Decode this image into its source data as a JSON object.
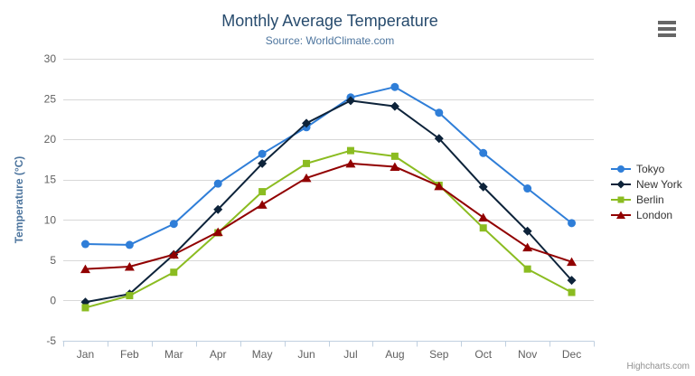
{
  "header": {
    "title": "Monthly Average Temperature",
    "subtitle": "Source: WorldClimate.com"
  },
  "credits": {
    "text": "Highcharts.com"
  },
  "menu": {
    "icon": "hamburger-menu-icon"
  },
  "chart_data": {
    "type": "line",
    "title": "Monthly Average Temperature",
    "subtitle": "Source: WorldClimate.com",
    "xlabel": "",
    "ylabel": "Temperature (°C)",
    "ylim": [
      -5,
      30
    ],
    "ytick_step": 5,
    "grid": true,
    "legend_position": "right",
    "categories": [
      "Jan",
      "Feb",
      "Mar",
      "Apr",
      "May",
      "Jun",
      "Jul",
      "Aug",
      "Sep",
      "Oct",
      "Nov",
      "Dec"
    ],
    "series": [
      {
        "name": "Tokyo",
        "marker": "circle",
        "color": "#2f7ed8",
        "values": [
          7.0,
          6.9,
          9.5,
          14.5,
          18.2,
          21.5,
          25.2,
          26.5,
          23.3,
          18.3,
          13.9,
          9.6
        ]
      },
      {
        "name": "New York",
        "marker": "diamond",
        "color": "#0d233a",
        "values": [
          -0.2,
          0.8,
          5.7,
          11.3,
          17.0,
          22.0,
          24.8,
          24.1,
          20.1,
          14.1,
          8.6,
          2.5
        ]
      },
      {
        "name": "Berlin",
        "marker": "square",
        "color": "#8bbc21",
        "values": [
          -0.9,
          0.6,
          3.5,
          8.4,
          13.5,
          17.0,
          18.6,
          17.9,
          14.3,
          9.0,
          3.9,
          1.0
        ]
      },
      {
        "name": "London",
        "marker": "triangle",
        "color": "#910000",
        "values": [
          3.9,
          4.2,
          5.7,
          8.5,
          11.9,
          15.2,
          17.0,
          16.6,
          14.2,
          10.3,
          6.6,
          4.8
        ]
      }
    ],
    "colors": {
      "title": "#274b6d",
      "subtitle": "#4d759e",
      "axis_title": "#4d759e",
      "tick_label": "#606060",
      "grid": "#d8d8d8",
      "axis_line": "#c0d0e0",
      "legend_text": "#333333",
      "credits": "#909090"
    }
  }
}
